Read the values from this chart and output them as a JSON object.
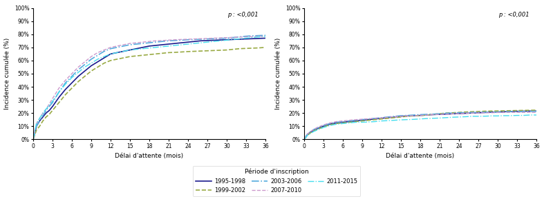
{
  "fig_width": 8.0,
  "fig_height": 2.89,
  "dpi": 100,
  "ylabel": "Incidence cumulée (%)",
  "xlabel": "Délai d'attente (mois)",
  "legend_title": "Période d'inscription",
  "pvalue_text": "p : <0,001",
  "yticks": [
    0,
    10,
    20,
    30,
    40,
    50,
    60,
    70,
    80,
    90,
    100
  ],
  "xticks": [
    0,
    3,
    6,
    9,
    12,
    15,
    18,
    21,
    24,
    27,
    30,
    33,
    36
  ],
  "xlim": [
    0,
    36
  ],
  "ylim": [
    0,
    100
  ],
  "series": [
    {
      "label": "1995-1998",
      "color": "#1a1a8c",
      "linestyle": "solid",
      "linewidth": 1.2,
      "dash": null
    },
    {
      "label": "1999-2002",
      "color": "#99aa44",
      "linestyle": "dashed",
      "linewidth": 1.2,
      "dash": [
        4,
        3
      ]
    },
    {
      "label": "2003-2006",
      "color": "#55aadd",
      "linestyle": "dashdot",
      "linewidth": 1.2,
      "dash": [
        5,
        2,
        1,
        2
      ]
    },
    {
      "label": "2007-2010",
      "color": "#cc99cc",
      "linestyle": "dashed",
      "linewidth": 1.0,
      "dash": [
        4,
        3
      ]
    },
    {
      "label": "2011-2015",
      "color": "#44ddee",
      "linestyle": "dashdot",
      "linewidth": 1.0,
      "dash": [
        5,
        2,
        1,
        2
      ]
    }
  ],
  "left_curves": {
    "x": [
      0,
      0.3,
      0.5,
      1,
      1.5,
      2,
      2.5,
      3,
      4,
      5,
      6,
      7,
      8,
      9,
      10,
      11,
      12,
      13,
      14,
      15,
      16,
      17,
      18,
      19,
      20,
      21,
      22,
      23,
      24,
      25,
      26,
      27,
      28,
      29,
      30,
      31,
      32,
      33,
      34,
      35,
      36
    ],
    "y_1995": [
      0,
      6,
      10,
      14,
      17,
      20,
      22,
      25,
      32,
      38,
      43,
      48,
      52,
      56,
      59,
      62,
      65,
      66,
      67,
      68,
      69,
      70,
      71,
      71.5,
      72,
      72.5,
      73,
      73.5,
      74,
      74.5,
      75,
      75.2,
      75.4,
      75.6,
      75.8,
      76,
      76.2,
      76.4,
      76.6,
      76.8,
      77
    ],
    "y_1999": [
      0,
      4,
      7,
      10,
      14,
      17,
      19,
      22,
      28,
      34,
      39,
      44,
      48,
      52,
      55,
      58,
      60,
      61,
      62,
      63,
      63.5,
      64,
      64.5,
      65,
      65.5,
      66,
      66.2,
      66.5,
      66.8,
      67,
      67.2,
      67.4,
      67.6,
      67.8,
      68,
      68.5,
      69,
      69.2,
      69.4,
      69.6,
      70
    ],
    "y_2003": [
      0,
      6,
      10,
      14,
      18,
      22,
      25,
      28,
      36,
      43,
      48,
      53,
      57,
      61,
      64,
      67,
      69,
      70,
      71,
      72,
      72.5,
      73,
      73.5,
      74,
      74.5,
      75,
      75.2,
      75.5,
      75.8,
      76,
      76.2,
      76.4,
      76.6,
      76.8,
      77,
      77.5,
      78,
      78.5,
      78.8,
      79,
      79.2
    ],
    "y_2007": [
      0,
      7,
      12,
      16,
      20,
      23,
      27,
      31,
      39,
      45,
      50,
      55,
      59,
      63,
      66,
      68,
      70,
      71,
      72,
      73,
      73.5,
      74,
      74.5,
      75,
      75.2,
      75.5,
      75.8,
      76,
      76.2,
      76.4,
      76.6,
      76.8,
      77,
      77.2,
      77.4,
      77.6,
      77.8,
      78,
      78.2,
      78.4,
      78.6
    ],
    "y_2011": [
      0,
      7,
      12,
      16,
      20,
      23,
      26,
      29,
      36,
      42,
      47,
      51,
      55,
      58,
      61,
      63,
      65,
      66,
      67,
      68,
      68.5,
      69,
      69.5,
      70,
      70.5,
      71,
      71.5,
      72,
      72.5,
      73,
      73.5,
      74,
      74.5,
      75,
      75.5,
      76,
      76.5,
      77,
      77.5,
      78,
      78.5
    ]
  },
  "right_curves": {
    "x": [
      0,
      0.3,
      0.5,
      1,
      1.5,
      2,
      2.5,
      3,
      4,
      5,
      6,
      7,
      8,
      9,
      10,
      11,
      12,
      13,
      14,
      15,
      16,
      17,
      18,
      19,
      20,
      21,
      22,
      23,
      24,
      25,
      26,
      27,
      28,
      29,
      30,
      31,
      32,
      33,
      34,
      35,
      36
    ],
    "y_1995": [
      0,
      2,
      3.5,
      5.5,
      7,
      8,
      9,
      10,
      11.5,
      12.5,
      13,
      13.5,
      14,
      14.5,
      15,
      15.5,
      16,
      16.5,
      17,
      17.5,
      17.8,
      18,
      18.2,
      18.5,
      18.8,
      19,
      19.2,
      19.4,
      19.6,
      19.8,
      20,
      20.2,
      20.4,
      20.6,
      20.8,
      21,
      21.2,
      21.3,
      21.4,
      21.5,
      21.5
    ],
    "y_1999": [
      0,
      2,
      3,
      5,
      6.5,
      7.5,
      8.5,
      9.5,
      11,
      12,
      12.5,
      13,
      13.5,
      14,
      14.5,
      15,
      15.5,
      16,
      16.5,
      17,
      17.5,
      17.8,
      18,
      18.5,
      19,
      19.5,
      20,
      20.2,
      20.5,
      20.8,
      21,
      21.2,
      21.4,
      21.5,
      21.6,
      21.7,
      21.8,
      21.9,
      22,
      22.1,
      22.2
    ],
    "y_2003": [
      0,
      2.5,
      4,
      6,
      7.5,
      8.5,
      9.5,
      10.5,
      12,
      13,
      13.5,
      14,
      14.5,
      15,
      15.5,
      16,
      16.5,
      17,
      17.5,
      18,
      18.2,
      18.5,
      18.8,
      19,
      19.2,
      19.5,
      19.8,
      20,
      20.2,
      20.3,
      20.4,
      20.5,
      20.6,
      20.7,
      20.8,
      20.9,
      21,
      21.1,
      21.2,
      21.3,
      21.3
    ],
    "y_2007": [
      0,
      2.5,
      4,
      6,
      7.5,
      9,
      10,
      11,
      12.5,
      13.5,
      14,
      14.5,
      15,
      15.3,
      15.6,
      16,
      16.3,
      16.8,
      17.2,
      17.5,
      17.8,
      18,
      18.2,
      18.5,
      18.8,
      19,
      19.2,
      19.4,
      19.6,
      19.8,
      20,
      20,
      20.2,
      20.2,
      20.4,
      20.4,
      20.5,
      20.5,
      20.5,
      20.5,
      20.5
    ],
    "y_2011": [
      0,
      1.5,
      3,
      4.5,
      6,
      7,
      8,
      9,
      10.5,
      11.5,
      12,
      12.5,
      13,
      13,
      13.2,
      13.5,
      14,
      14.2,
      14.5,
      14.8,
      15,
      15.2,
      15.5,
      15.8,
      16,
      16.2,
      16.5,
      16.8,
      17,
      17.2,
      17.5,
      17.5,
      17.6,
      17.8,
      17.8,
      18,
      18,
      18.2,
      18.2,
      18.5,
      18.5
    ]
  }
}
